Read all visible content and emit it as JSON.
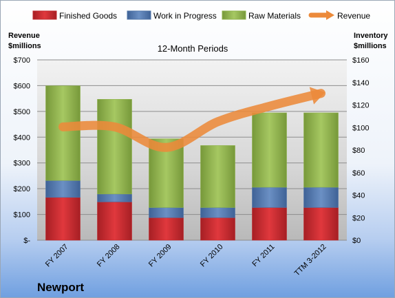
{
  "chart_data": {
    "type": "bar",
    "stacked": true,
    "subtitle": "12-Month Periods",
    "company": "Newport",
    "categories": [
      "FY 2007",
      "FY 2008",
      "FY 2009",
      "FY 2010",
      "FY 2011",
      "TTM 3-2012"
    ],
    "left_axis": {
      "label_line1": "Revenue",
      "label_line2": "$millions",
      "ylim": [
        0,
        700
      ],
      "ticks": [
        0,
        100,
        200,
        300,
        400,
        500,
        600,
        700
      ],
      "tick_labels": [
        "$-",
        "$100",
        "$200",
        "$300",
        "$400",
        "$500",
        "$600",
        "$700"
      ]
    },
    "right_axis": {
      "label_line1": "Inventory",
      "label_line2": "$millions",
      "ylim": [
        0,
        160
      ],
      "ticks": [
        0,
        20,
        40,
        60,
        80,
        100,
        120,
        140,
        160
      ],
      "tick_labels": [
        "$0",
        "$20",
        "$40",
        "$60",
        "$80",
        "$100",
        "$120",
        "$140",
        "$160"
      ]
    },
    "series": [
      {
        "name": "Finished Goods",
        "axis": "right",
        "kind": "bar",
        "color": "#c0282d",
        "values": [
          38,
          34,
          20,
          20,
          29,
          29
        ]
      },
      {
        "name": "Work in Progress",
        "axis": "right",
        "kind": "bar",
        "color": "#4f74a8",
        "values": [
          15,
          7,
          9,
          9,
          18,
          18
        ]
      },
      {
        "name": "Raw Materials",
        "axis": "right",
        "kind": "bar",
        "color": "#8db14a",
        "values": [
          84,
          84,
          61,
          55,
          66,
          66
        ]
      },
      {
        "name": "Revenue",
        "axis": "left",
        "kind": "line",
        "color": "#ec8a3a",
        "values": [
          440,
          440,
          360,
          460,
          520,
          570
        ]
      }
    ],
    "grid": true,
    "legend_position": "top"
  }
}
